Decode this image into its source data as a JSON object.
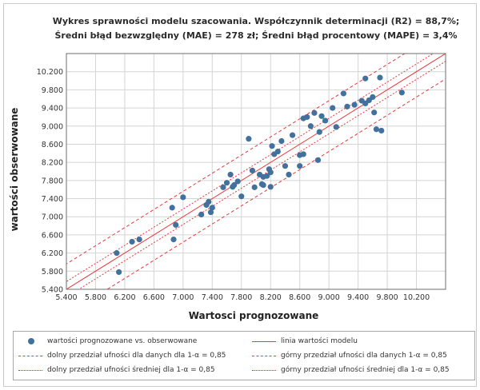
{
  "chart_data": {
    "type": "scatter",
    "title_line1": "Wykres sprawności modelu szacowania. Współczynnik determinacji (R2) = 88,7%;",
    "title_line2": "Średni błąd bezwzględny (MAE) = 278 zł; Średni błąd procentowy (MAPE) = 3,4%",
    "xlabel": "Wartosci prognozowane",
    "ylabel": "wartości obserwowane",
    "xlim": [
      5400,
      10600
    ],
    "ylim": [
      5400,
      10600
    ],
    "x_ticks": [
      "5.400",
      "5.800",
      "6.200",
      "6.600",
      "7.000",
      "7.400",
      "7.800",
      "8.200",
      "8.600",
      "9.000",
      "9.400",
      "9.800",
      "10.200"
    ],
    "y_ticks": [
      "10.200",
      "9.800",
      "9.400",
      "9.000",
      "8.600",
      "8.200",
      "7.800",
      "7.400",
      "7.000",
      "6.600",
      "6.200",
      "5.800",
      "5.400"
    ],
    "x_tick_values": [
      5400,
      5800,
      6200,
      6600,
      7000,
      7400,
      7800,
      8200,
      8600,
      9000,
      9400,
      9800,
      10200
    ],
    "y_tick_values": [
      10200,
      9800,
      9400,
      9000,
      8600,
      8200,
      7800,
      7400,
      7000,
      6600,
      6200,
      5800,
      5400
    ],
    "model_line": {
      "intercept": 0,
      "slope": 1
    },
    "prediction_interval_half_width": 560,
    "confidence_interval_half_width": 170,
    "points": [
      [
        6090,
        6200
      ],
      [
        6120,
        5780
      ],
      [
        6300,
        6450
      ],
      [
        6400,
        6500
      ],
      [
        6850,
        7200
      ],
      [
        6870,
        6500
      ],
      [
        6900,
        6820
      ],
      [
        7000,
        7430
      ],
      [
        7250,
        7050
      ],
      [
        7320,
        7260
      ],
      [
        7350,
        7330
      ],
      [
        7380,
        7100
      ],
      [
        7400,
        7200
      ],
      [
        7550,
        7650
      ],
      [
        7600,
        7750
      ],
      [
        7650,
        7930
      ],
      [
        7680,
        7660
      ],
      [
        7700,
        7700
      ],
      [
        7750,
        7780
      ],
      [
        7800,
        7450
      ],
      [
        7900,
        8720
      ],
      [
        7950,
        8020
      ],
      [
        7980,
        7650
      ],
      [
        8050,
        7930
      ],
      [
        8080,
        7720
      ],
      [
        8100,
        7880
      ],
      [
        8100,
        7700
      ],
      [
        8150,
        7900
      ],
      [
        8180,
        8050
      ],
      [
        8200,
        7980
      ],
      [
        8200,
        7660
      ],
      [
        8220,
        8560
      ],
      [
        8250,
        8380
      ],
      [
        8300,
        8440
      ],
      [
        8350,
        8670
      ],
      [
        8400,
        8120
      ],
      [
        8450,
        7930
      ],
      [
        8500,
        8800
      ],
      [
        8600,
        8120
      ],
      [
        8600,
        8360
      ],
      [
        8650,
        8380
      ],
      [
        8650,
        9170
      ],
      [
        8700,
        9200
      ],
      [
        8750,
        9000
      ],
      [
        8800,
        9290
      ],
      [
        8850,
        8250
      ],
      [
        8870,
        8870
      ],
      [
        8900,
        9220
      ],
      [
        8950,
        9120
      ],
      [
        9050,
        9400
      ],
      [
        9100,
        8980
      ],
      [
        9200,
        9720
      ],
      [
        9250,
        9430
      ],
      [
        9350,
        9470
      ],
      [
        9450,
        9560
      ],
      [
        9500,
        10050
      ],
      [
        9500,
        9500
      ],
      [
        9550,
        9570
      ],
      [
        9600,
        9640
      ],
      [
        9620,
        9300
      ],
      [
        9650,
        8930
      ],
      [
        9700,
        10070
      ],
      [
        9720,
        8900
      ],
      [
        10000,
        9740
      ]
    ]
  },
  "legend": {
    "points": "wartości prognozowane vs. obserwowane",
    "model_line": "linia wartości modelu",
    "lower_pred": "dolny przedział ufności dla danych dla 1-α = 0,85",
    "upper_pred": "górny przedział ufności dla danych 1-α = 0,85",
    "lower_conf": "dolny przedział ufności średniej dla 1-α = 0,85",
    "upper_conf": "górny przedział ufności średniej dla 1-α = 0,85"
  },
  "colors": {
    "points": "#41719c",
    "lines": "#e8393a",
    "grid": "#d4d4d4"
  }
}
